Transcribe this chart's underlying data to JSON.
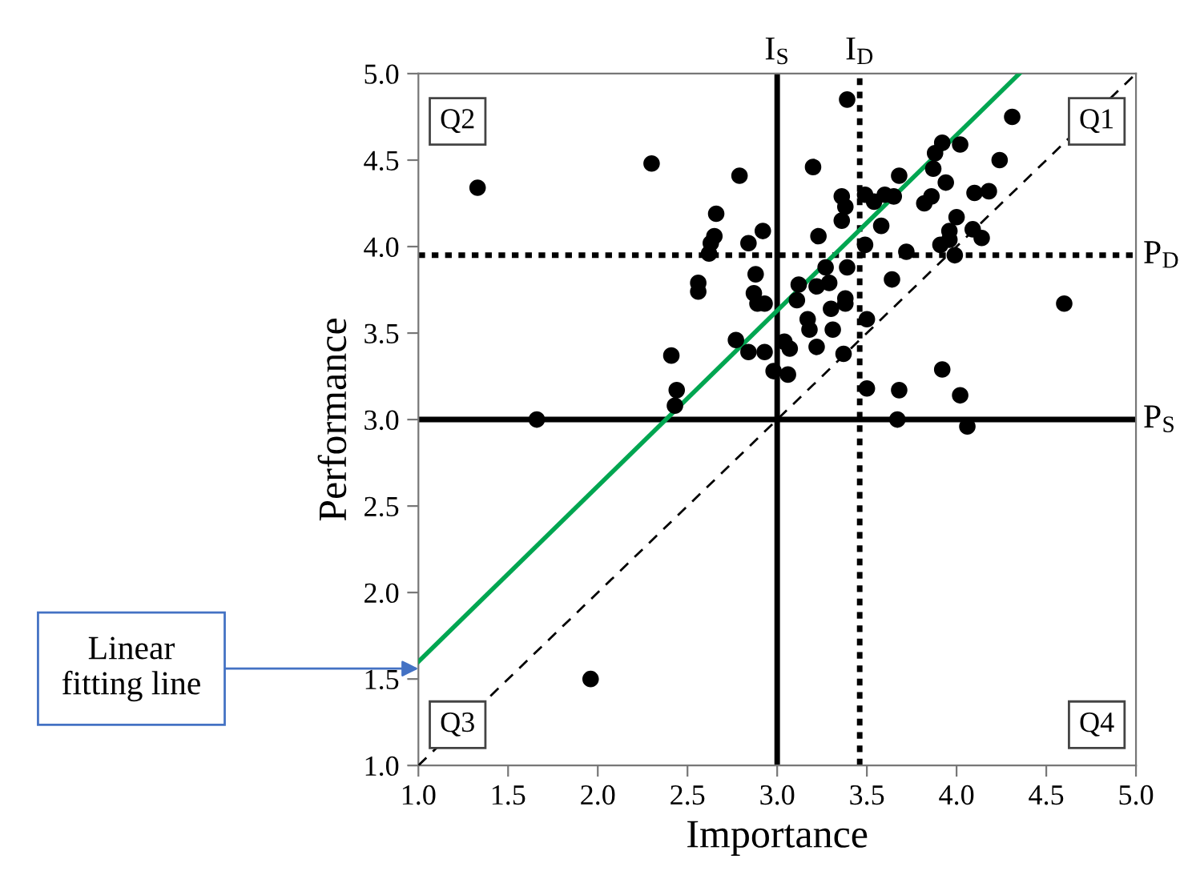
{
  "chart_data": {
    "type": "scatter",
    "xlabel": "Importance",
    "ylabel": "Performance",
    "xlim": [
      1.0,
      5.0
    ],
    "ylim": [
      1.0,
      5.0
    ],
    "xticks": [
      {
        "value": 1,
        "label": "1.0"
      },
      1.5,
      {
        "value": 2,
        "label": "2.0"
      },
      2.5,
      {
        "value": 3,
        "label": "3.0"
      },
      3.5,
      {
        "value": 4,
        "label": "4.0"
      },
      4.5,
      {
        "value": 5,
        "label": "5.0"
      }
    ],
    "yticks": [
      {
        "value": 1,
        "label": "1.0"
      },
      1.5,
      {
        "value": 2,
        "label": "2.0"
      },
      2.5,
      {
        "value": 3,
        "label": "3.0"
      },
      3.5,
      {
        "value": 4,
        "label": "4.0"
      },
      4.5,
      {
        "value": 5,
        "label": "5.0"
      }
    ],
    "grid": false,
    "series": [
      {
        "marker": "circle",
        "color": "#000000",
        "x": [
          1.33,
          1.66,
          1.96,
          2.3,
          2.79,
          3.2,
          3.39,
          2.66,
          2.65,
          2.63,
          2.62,
          2.92,
          2.84,
          2.88,
          2.56,
          2.56,
          2.87,
          2.93,
          3.36,
          3.38,
          3.49,
          3.54,
          3.6,
          3.36,
          3.23,
          3.58,
          3.49,
          3.39,
          3.27,
          3.29,
          3.12,
          3.22,
          3.38,
          3.64,
          3.11,
          2.77,
          2.41,
          2.44,
          2.43,
          2.84,
          2.93,
          2.98,
          3.06,
          3.07,
          3.04,
          3.17,
          3.18,
          3.22,
          3.31,
          3.37,
          3.3,
          3.38,
          3.5,
          3.5,
          2.89,
          3.67,
          3.68,
          3.92,
          4.02,
          4.06,
          4.6,
          4.31,
          3.92,
          4.02,
          3.88,
          4.24,
          3.87,
          3.94,
          3.68,
          4.1,
          4.18,
          3.86,
          3.82,
          3.65,
          4.0,
          3.96,
          4.09,
          4.14,
          3.96,
          3.91,
          3.99,
          3.72
        ],
        "values": [
          4.34,
          3.0,
          1.5,
          4.48,
          4.41,
          4.46,
          4.85,
          4.19,
          4.06,
          4.02,
          3.96,
          4.09,
          4.02,
          3.84,
          3.79,
          3.74,
          3.73,
          3.67,
          4.29,
          4.23,
          4.3,
          4.26,
          4.3,
          4.15,
          4.06,
          4.12,
          4.01,
          3.88,
          3.88,
          3.79,
          3.78,
          3.77,
          3.7,
          3.81,
          3.69,
          3.46,
          3.37,
          3.17,
          3.08,
          3.39,
          3.39,
          3.28,
          3.26,
          3.41,
          3.45,
          3.58,
          3.52,
          3.42,
          3.52,
          3.38,
          3.64,
          3.67,
          3.58,
          3.18,
          3.67,
          3.0,
          3.17,
          3.29,
          3.14,
          2.96,
          3.67,
          4.75,
          4.6,
          4.59,
          4.54,
          4.5,
          4.45,
          4.37,
          4.41,
          4.31,
          4.32,
          4.29,
          4.25,
          4.29,
          4.17,
          4.09,
          4.1,
          4.05,
          4.04,
          4.01,
          3.95,
          3.97
        ]
      },
      {
        "type": "line",
        "marker": "none",
        "color": "#00a651",
        "line_style": "solid",
        "x": [
          1.0,
          4.35
        ],
        "values": [
          1.6,
          5.0
        ]
      },
      {
        "type": "line",
        "marker": "none",
        "color": "#000000",
        "line_style": "dashed",
        "x": [
          1.0,
          5.0
        ],
        "values": [
          1.0,
          5.0
        ]
      }
    ],
    "ref_lines": [
      {
        "axis": "x",
        "value": 3.0,
        "label": "I$_{S}$",
        "line_style": "solid",
        "color": "#000000"
      },
      {
        "axis": "x",
        "value": 3.46,
        "label": "I$_{D}$",
        "line_style": "dotted",
        "color": "#000000"
      },
      {
        "axis": "y",
        "value": 3.95,
        "label": "P$_{D}$",
        "line_style": "dotted",
        "color": "#000000"
      },
      {
        "axis": "y",
        "value": 3.0,
        "label": "P$_{S}$",
        "line_style": "solid",
        "color": "#000000"
      }
    ],
    "annotations": [
      "Q2",
      "Q1",
      "Q3",
      "Q4",
      "Linear\nfitting line"
    ]
  }
}
